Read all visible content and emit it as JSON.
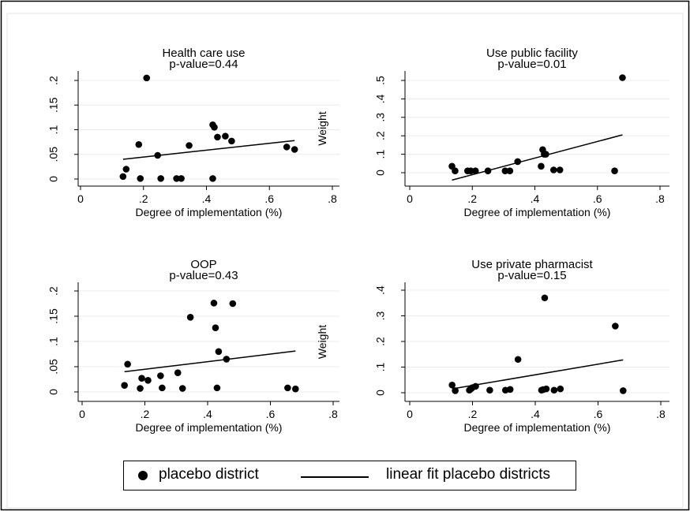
{
  "chart_data": [
    {
      "type": "scatter",
      "title": "Health care use",
      "subtitle": "p-value=0.44",
      "xlabel": "Degree of implementation (%)",
      "ylabel": "",
      "xlim": [
        0,
        0.8
      ],
      "ylim": [
        0,
        0.2
      ],
      "xticks": [
        "0",
        ".2",
        ".4",
        ".6",
        ".8"
      ],
      "yticks": [
        "0",
        ".05",
        ".1",
        ".15",
        ".2"
      ],
      "series": [
        {
          "name": "placebo district",
          "x": [
            0.135,
            0.145,
            0.185,
            0.19,
            0.21,
            0.245,
            0.255,
            0.305,
            0.32,
            0.345,
            0.42,
            0.42,
            0.425,
            0.435,
            0.46,
            0.48,
            0.655,
            0.68
          ],
          "y": [
            0.005,
            0.02,
            0.07,
            0.001,
            0.205,
            0.048,
            0.001,
            0.001,
            0.001,
            0.068,
            0.001,
            0.11,
            0.105,
            0.085,
            0.087,
            0.077,
            0.065,
            0.06
          ]
        },
        {
          "name": "linear fit placebo districts",
          "x": [
            0.135,
            0.68
          ],
          "y": [
            0.04,
            0.078
          ]
        }
      ]
    },
    {
      "type": "scatter",
      "title": "Use public facility",
      "subtitle": "p-value=0.01",
      "xlabel": "Degree of implementation (%)",
      "ylabel": "Weight",
      "xlim": [
        0,
        0.8
      ],
      "ylim": [
        0,
        0.5
      ],
      "xticks": [
        "0",
        ".2",
        ".4",
        ".6",
        ".8"
      ],
      "yticks": [
        "0",
        ".1",
        ".2",
        ".3",
        ".4",
        ".5"
      ],
      "series": [
        {
          "name": "placebo district",
          "x": [
            0.135,
            0.145,
            0.185,
            0.195,
            0.21,
            0.25,
            0.305,
            0.32,
            0.345,
            0.42,
            0.425,
            0.43,
            0.435,
            0.46,
            0.48,
            0.655,
            0.68
          ],
          "y": [
            0.035,
            0.01,
            0.01,
            0.01,
            0.01,
            0.01,
            0.01,
            0.01,
            0.06,
            0.035,
            0.125,
            0.1,
            0.1,
            0.015,
            0.015,
            0.01,
            0.515
          ]
        },
        {
          "name": "linear fit placebo districts",
          "x": [
            0.135,
            0.68
          ],
          "y": [
            -0.04,
            0.205
          ]
        }
      ]
    },
    {
      "type": "scatter",
      "title": "OOP",
      "subtitle": "p-value=0.43",
      "xlabel": "Degree of implementation (%)",
      "ylabel": "",
      "xlim": [
        0,
        0.8
      ],
      "ylim": [
        0,
        0.2
      ],
      "xticks": [
        "0",
        ".2",
        ".4",
        ".6",
        ".8"
      ],
      "yticks": [
        "0",
        ".05",
        ".1",
        ".15",
        ".2"
      ],
      "series": [
        {
          "name": "placebo district",
          "x": [
            0.135,
            0.145,
            0.185,
            0.19,
            0.21,
            0.25,
            0.255,
            0.305,
            0.32,
            0.345,
            0.42,
            0.425,
            0.43,
            0.435,
            0.46,
            0.48,
            0.655,
            0.68
          ],
          "y": [
            0.013,
            0.055,
            0.007,
            0.027,
            0.023,
            0.032,
            0.008,
            0.038,
            0.007,
            0.148,
            0.176,
            0.127,
            0.008,
            0.08,
            0.065,
            0.175,
            0.008,
            0.006
          ]
        },
        {
          "name": "linear fit placebo districts",
          "x": [
            0.135,
            0.68
          ],
          "y": [
            0.04,
            0.081
          ]
        }
      ]
    },
    {
      "type": "scatter",
      "title": "Use private pharmacist",
      "subtitle": "p-value=0.15",
      "xlabel": "Degree of implementation (%)",
      "ylabel": "Weight",
      "xlim": [
        0,
        0.8
      ],
      "ylim": [
        0,
        0.4
      ],
      "xticks": [
        "0",
        ".2",
        ".4",
        ".6",
        ".8"
      ],
      "yticks": [
        "0",
        ".1",
        ".2",
        ".3",
        ".4"
      ],
      "series": [
        {
          "name": "placebo district",
          "x": [
            0.135,
            0.145,
            0.19,
            0.195,
            0.2,
            0.21,
            0.255,
            0.305,
            0.32,
            0.345,
            0.42,
            0.425,
            0.43,
            0.435,
            0.46,
            0.48,
            0.655,
            0.68
          ],
          "y": [
            0.03,
            0.008,
            0.01,
            0.015,
            0.02,
            0.025,
            0.01,
            0.01,
            0.013,
            0.13,
            0.01,
            0.012,
            0.37,
            0.015,
            0.01,
            0.015,
            0.26,
            0.008
          ]
        },
        {
          "name": "linear fit placebo districts",
          "x": [
            0.135,
            0.68
          ],
          "y": [
            0.015,
            0.128
          ]
        }
      ]
    }
  ],
  "legend": {
    "dot_label": "placebo district",
    "line_label": "linear fit placebo districts"
  },
  "colors": {
    "background": "#ffffff",
    "frame": "#000000",
    "grid": "#e8ecef",
    "ink": "#000000"
  }
}
